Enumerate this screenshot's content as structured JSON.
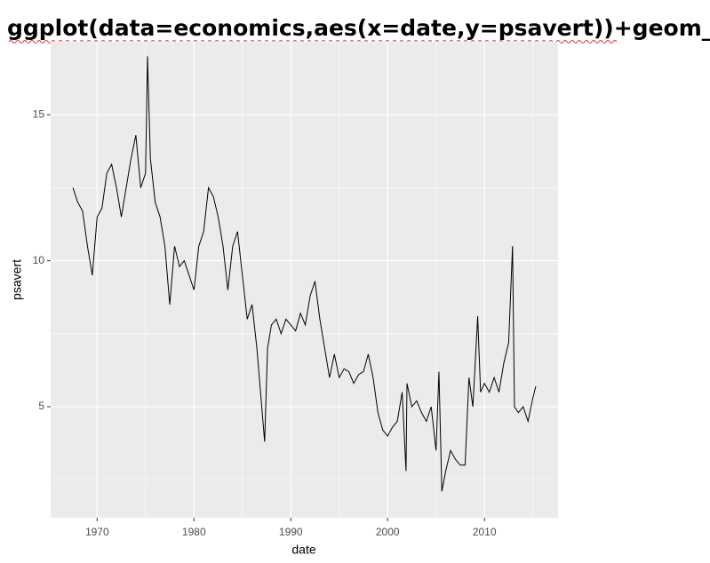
{
  "chart_data": {
    "type": "line",
    "title": "ggplot(data=economics,aes(x=date,y=psavert))+geom_line()",
    "x_label": "date",
    "y_label": "psavert",
    "x": [
      1967.5,
      1968,
      1968.5,
      1969,
      1969.5,
      1970,
      1970.5,
      1971,
      1971.5,
      1972,
      1972.5,
      1973,
      1973.5,
      1974,
      1974.5,
      1975,
      1975.2,
      1975.5,
      1976,
      1976.5,
      1977,
      1977.5,
      1978,
      1978.5,
      1979,
      1979.5,
      1980,
      1980.5,
      1981,
      1981.5,
      1982,
      1982.5,
      1983,
      1983.5,
      1984,
      1984.5,
      1985,
      1985.5,
      1986,
      1986.5,
      1987,
      1987.3,
      1987.6,
      1988,
      1988.5,
      1989,
      1989.5,
      1990,
      1990.5,
      1991,
      1991.5,
      1992,
      1992.5,
      1993,
      1993.5,
      1994,
      1994.5,
      1995,
      1995.5,
      1996,
      1996.5,
      1997,
      1997.5,
      1998,
      1998.5,
      1999,
      1999.5,
      2000,
      2000.5,
      2001,
      2001.5,
      2001.9,
      2002,
      2002.5,
      2003,
      2003.5,
      2004,
      2004.5,
      2005,
      2005.3,
      2005.6,
      2006,
      2006.5,
      2007,
      2007.5,
      2008,
      2008.4,
      2008.8,
      2009,
      2009.3,
      2009.6,
      2010,
      2010.5,
      2011,
      2011.5,
      2012,
      2012.5,
      2012.9,
      2013.1,
      2013.5,
      2014,
      2014.5,
      2015,
      2015.3
    ],
    "series": [
      {
        "name": "psavert",
        "color": "#000000",
        "values": [
          12.5,
          12,
          11.7,
          10.5,
          9.5,
          11.5,
          11.8,
          13,
          13.3,
          12.5,
          11.5,
          12.5,
          13.5,
          14.3,
          12.5,
          13,
          17,
          13.5,
          12,
          11.5,
          10.5,
          8.5,
          10.5,
          9.8,
          10,
          9.5,
          9,
          10.5,
          11,
          12.5,
          12.2,
          11.5,
          10.5,
          9,
          10.5,
          11,
          9.5,
          8,
          8.5,
          7,
          5,
          3.8,
          7,
          7.8,
          8,
          7.5,
          8,
          7.8,
          7.6,
          8.2,
          7.8,
          8.8,
          9.3,
          8,
          7,
          6,
          6.8,
          6,
          6.3,
          6.2,
          5.8,
          6.1,
          6.2,
          6.8,
          6,
          4.8,
          4.2,
          4,
          4.3,
          4.5,
          5.5,
          2.8,
          5.8,
          5,
          5.2,
          4.8,
          4.5,
          5,
          3.5,
          6.2,
          2.1,
          2.8,
          3.5,
          3.2,
          3,
          3,
          6,
          5,
          6.2,
          8.1,
          5.5,
          5.8,
          5.5,
          6,
          5.5,
          6.5,
          7.2,
          10.5,
          5,
          4.8,
          5,
          4.5,
          5.3,
          5.7
        ]
      }
    ],
    "xlim": [
      1965.2,
      2017.6
    ],
    "ylim": [
      1.2,
      17.5
    ],
    "xticks": [
      1970,
      1980,
      1990,
      2000,
      2010
    ],
    "yticks": [
      5,
      10,
      15
    ],
    "grid": true,
    "panel_color": "#ebebeb"
  }
}
